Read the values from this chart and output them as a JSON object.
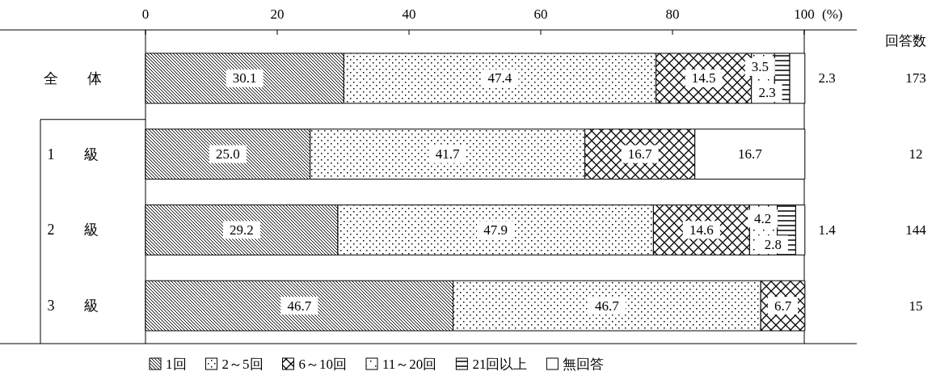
{
  "chart_data": {
    "type": "bar",
    "orientation": "horizontal",
    "stacked": true,
    "categories": [
      "全　　体",
      "1　　級",
      "2　　級",
      "3　　級"
    ],
    "xlim": [
      0,
      100
    ],
    "xticks": [
      0,
      20,
      40,
      60,
      80,
      100
    ],
    "xlabel": "(%)",
    "legend": "bottom",
    "grid": false,
    "series": [
      {
        "name": "1回",
        "color": "#000000",
        "values": [
          30.1,
          25.0,
          29.2,
          46.7
        ],
        "value_labels": [
          "30.1",
          "25.0",
          "29.2",
          "46.7"
        ]
      },
      {
        "name": "2～5回",
        "color": "#000000",
        "values": [
          47.4,
          41.7,
          47.9,
          46.7
        ],
        "value_labels": [
          "47.4",
          "41.7",
          "47.9",
          "46.7"
        ]
      },
      {
        "name": "6～10回",
        "color": "#000000",
        "values": [
          14.5,
          16.7,
          14.6,
          6.7
        ],
        "value_labels": [
          "14.5",
          "16.7",
          "14.6",
          "6.7"
        ]
      },
      {
        "name": "11～20回",
        "color": "#000000",
        "values": [
          3.5,
          0,
          4.2,
          0
        ],
        "value_labels": [
          "3.5",
          null,
          "4.2",
          null
        ]
      },
      {
        "name": "21回以上",
        "color": "#000000",
        "values": [
          2.3,
          0,
          2.8,
          0
        ],
        "value_labels": [
          "2.3",
          null,
          "2.8",
          null
        ]
      },
      {
        "name": "無回答",
        "color": "#ffffff",
        "values": [
          2.3,
          16.7,
          1.4,
          0
        ],
        "value_labels": [
          "2.3",
          "16.7",
          "1.4",
          null
        ]
      }
    ],
    "annotations": [
      "回答数",
      "173",
      "12",
      "144",
      "15"
    ]
  }
}
